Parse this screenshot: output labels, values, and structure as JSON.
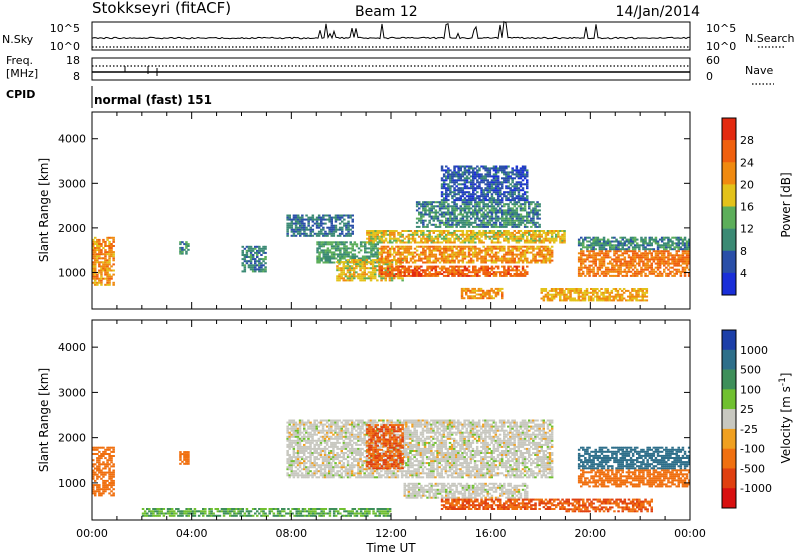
{
  "header": {
    "station": "Stokkseyri (fitACF)",
    "beam": "Beam 12",
    "date": "14/Jan/2014"
  },
  "nsky_panel": {
    "left_label": "N.Sky",
    "right_label": "N.Search",
    "left_ticks": [
      "10^5",
      "10^0"
    ],
    "right_ticks": [
      "10^5",
      "10^0"
    ]
  },
  "freq_panel": {
    "left_label_1": "Freq.",
    "left_label_2": "[MHz]",
    "right_label": "Nave",
    "left_ticks": [
      "18",
      "8"
    ],
    "right_ticks": [
      "60",
      "0"
    ]
  },
  "cpid": {
    "label": "CPID",
    "value": "normal (fast) 151"
  },
  "colors": {
    "power_scale": [
      "#1a2fd8",
      "#2a4fa8",
      "#3b8a74",
      "#5cae5a",
      "#e3c21a",
      "#f08a10",
      "#f0600e",
      "#e32a10"
    ],
    "velocity_scale": [
      "#1c3fa8",
      "#2e6f8a",
      "#3e8f5a",
      "#70c030",
      "#c8c8c0",
      "#f0a020",
      "#f07010",
      "#e04010",
      "#d81010"
    ]
  },
  "chart_data": [
    {
      "type": "heatmap",
      "panel": "power",
      "ylabel": "Slant Range [km]",
      "xlim": [
        "00:00",
        "24:00"
      ],
      "ylim": [
        180,
        4600
      ],
      "yticks": [
        "1000",
        "2000",
        "3000",
        "4000"
      ],
      "colorbar_label": "Power [dB]",
      "colorbar_ticks": [
        "4",
        "8",
        "12",
        "16",
        "20",
        "24",
        "28"
      ],
      "colorbar_range": [
        0,
        32
      ],
      "regions": [
        {
          "t0": 0.0,
          "t1": 0.9,
          "r0": 700,
          "r1": 1800,
          "value": 22
        },
        {
          "t0": 7.8,
          "t1": 10.5,
          "r0": 1800,
          "r1": 2300,
          "value": 8
        },
        {
          "t0": 9.0,
          "t1": 11.5,
          "r0": 1200,
          "r1": 1700,
          "value": 12
        },
        {
          "t0": 9.8,
          "t1": 12.5,
          "r0": 800,
          "r1": 1300,
          "value": 18
        },
        {
          "t0": 11.5,
          "t1": 17.5,
          "r0": 900,
          "r1": 1150,
          "value": 26
        },
        {
          "t0": 11.5,
          "t1": 18.5,
          "r0": 1200,
          "r1": 1600,
          "value": 22
        },
        {
          "t0": 11.0,
          "t1": 19.0,
          "r0": 1650,
          "r1": 1950,
          "value": 18
        },
        {
          "t0": 13.0,
          "t1": 18.0,
          "r0": 2000,
          "r1": 2600,
          "value": 10
        },
        {
          "t0": 14.0,
          "t1": 17.5,
          "r0": 2600,
          "r1": 3400,
          "value": 6
        },
        {
          "t0": 14.8,
          "t1": 16.5,
          "r0": 400,
          "r1": 650,
          "value": 22
        },
        {
          "t0": 18.0,
          "t1": 22.3,
          "r0": 350,
          "r1": 650,
          "value": 20
        },
        {
          "t0": 19.5,
          "t1": 24.0,
          "r0": 900,
          "r1": 1500,
          "value": 24
        },
        {
          "t0": 19.5,
          "t1": 24.0,
          "r0": 1500,
          "r1": 1800,
          "value": 10
        },
        {
          "t0": 3.5,
          "t1": 3.9,
          "r0": 1400,
          "r1": 1700,
          "value": 10
        },
        {
          "t0": 6.0,
          "t1": 7.0,
          "r0": 1000,
          "r1": 1600,
          "value": 10
        }
      ]
    },
    {
      "type": "heatmap",
      "panel": "velocity",
      "ylabel": "Slant Range [km]",
      "xlabel": "Time UT",
      "xlim": [
        "00:00",
        "24:00"
      ],
      "xticks": [
        "00:00",
        "04:00",
        "08:00",
        "12:00",
        "16:00",
        "20:00",
        "00:00"
      ],
      "ylim": [
        180,
        4600
      ],
      "yticks": [
        "1000",
        "2000",
        "3000",
        "4000"
      ],
      "colorbar_label": "Velocity [m s^-1]",
      "colorbar_ticks": [
        "1000",
        "500",
        "100",
        "25",
        "-25",
        "-100",
        "-500",
        "-1000"
      ],
      "regions": [
        {
          "t0": 0.0,
          "t1": 0.9,
          "r0": 700,
          "r1": 1800,
          "value": -100
        },
        {
          "t0": 7.8,
          "t1": 18.5,
          "r0": 1100,
          "r1": 2400,
          "value": 0
        },
        {
          "t0": 11.0,
          "t1": 12.5,
          "r0": 1300,
          "r1": 2300,
          "value": -300
        },
        {
          "t0": 12.5,
          "t1": 17.5,
          "r0": 650,
          "r1": 1000,
          "value": 0
        },
        {
          "t0": 14.0,
          "t1": 19.0,
          "r0": 400,
          "r1": 650,
          "value": -300
        },
        {
          "t0": 19.0,
          "t1": 22.5,
          "r0": 350,
          "r1": 650,
          "value": -300
        },
        {
          "t0": 19.5,
          "t1": 24.0,
          "r0": 900,
          "r1": 1300,
          "value": -100
        },
        {
          "t0": 19.5,
          "t1": 24.0,
          "r0": 1300,
          "r1": 1800,
          "value": 500
        },
        {
          "t0": 2.0,
          "t1": 12.0,
          "r0": 250,
          "r1": 450,
          "value": 60
        },
        {
          "t0": 3.5,
          "t1": 3.9,
          "r0": 1400,
          "r1": 1700,
          "value": -100
        }
      ]
    }
  ]
}
